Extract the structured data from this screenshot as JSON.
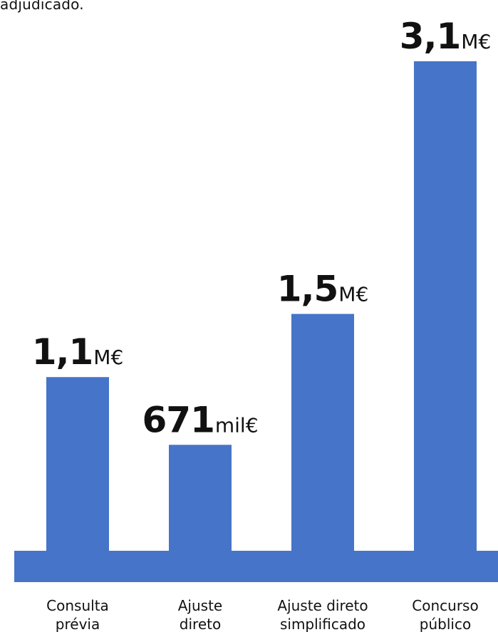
{
  "header": {
    "fragment": "adjudicado."
  },
  "chart_data": {
    "type": "bar",
    "categories": [
      [
        "Consulta",
        "prévia"
      ],
      [
        "Ajuste",
        "direto"
      ],
      [
        "Ajuste direto",
        "simplificado"
      ],
      [
        "Concurso",
        "público"
      ]
    ],
    "values": [
      1.1,
      0.671,
      1.5,
      3.1
    ],
    "units": [
      "M€",
      "mil€",
      "M€",
      "M€"
    ],
    "value_labels": [
      {
        "number": "1,1",
        "unit": "M€"
      },
      {
        "number": "671",
        "unit": "mil€"
      },
      {
        "number": "1,5",
        "unit": "M€"
      },
      {
        "number": "3,1",
        "unit": "M€"
      }
    ],
    "value_unit": "M€",
    "ylim": [
      0,
      3.1
    ],
    "grid": false,
    "legend": "none",
    "colors": {
      "bar": "#4674C8",
      "baseline": "#4674C8",
      "text": "#111111"
    }
  }
}
